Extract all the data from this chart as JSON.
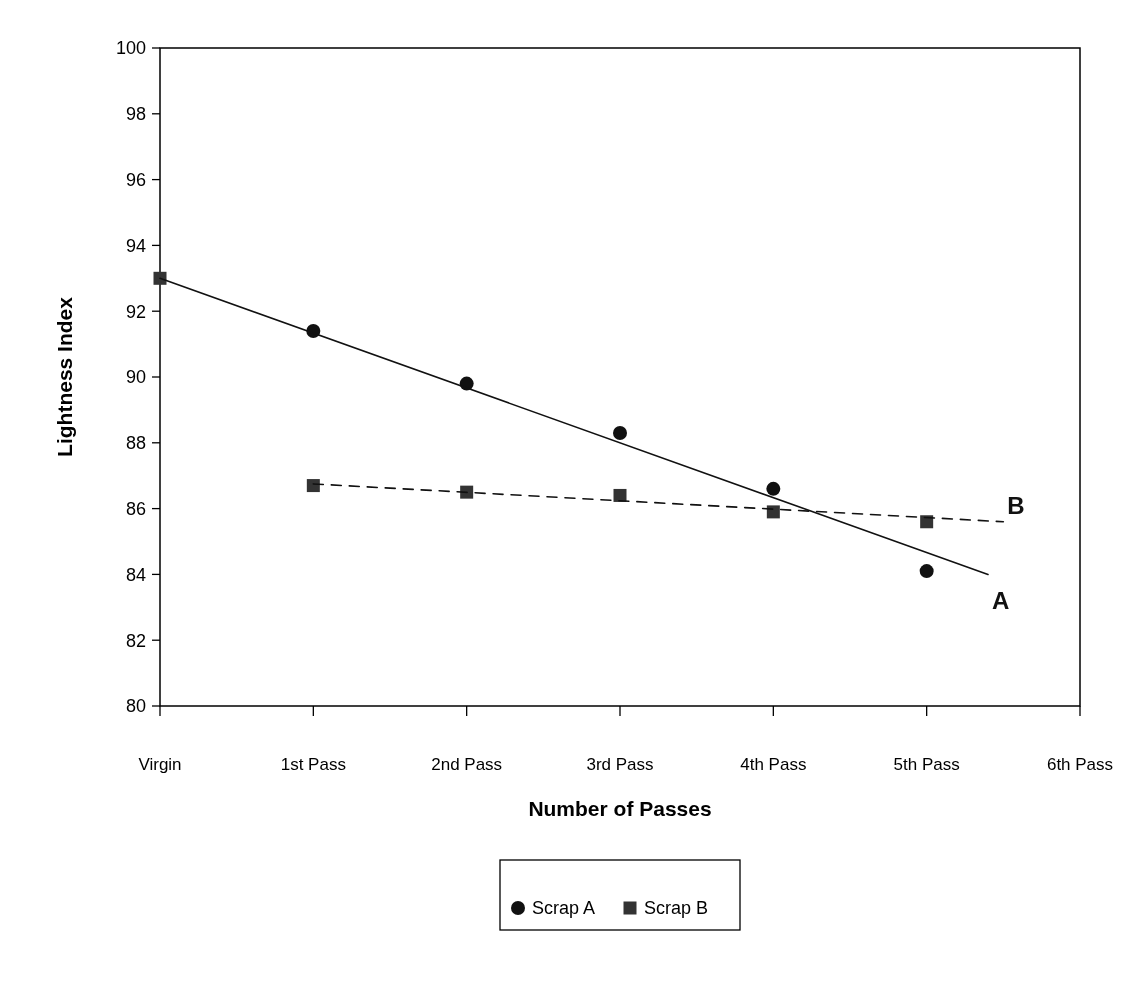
{
  "chart_data": {
    "type": "scatter",
    "xlabel": "Number of Passes",
    "ylabel": "Lightness Index",
    "x": [
      0,
      1,
      2,
      3,
      4,
      5
    ],
    "xlim": [
      0,
      6
    ],
    "xticks": [
      {
        "value": 0,
        "label": "Virgin"
      },
      {
        "value": 1,
        "label": "1st Pass"
      },
      {
        "value": 2,
        "label": "2nd Pass"
      },
      {
        "value": 3,
        "label": "3rd Pass"
      },
      {
        "value": 4,
        "label": "4th Pass"
      },
      {
        "value": 5,
        "label": "5th Pass"
      },
      {
        "value": 6,
        "label": "6th Pass"
      }
    ],
    "ylim": [
      80,
      100
    ],
    "yticks": [
      80,
      82,
      84,
      86,
      88,
      90,
      92,
      94,
      96,
      98,
      100
    ],
    "series": [
      {
        "name": "Scrap A",
        "color": "#111111",
        "marker": "circle",
        "values": [
          null,
          91.4,
          89.8,
          88.3,
          86.6,
          84.1
        ]
      },
      {
        "name": "Scrap B",
        "color": "#333333",
        "marker": "square",
        "values": [
          93.0,
          86.7,
          86.5,
          86.4,
          85.9,
          85.6
        ]
      },
      {
        "type": "line",
        "name": "A",
        "color": "#111111",
        "line_style": "solid",
        "x": [
          0,
          5.4
        ],
        "values": [
          93.0,
          84.0
        ]
      },
      {
        "type": "line",
        "name": "B",
        "color": "#111111",
        "line_style": "dashed",
        "x": [
          1,
          5.5
        ],
        "values": [
          86.75,
          85.6
        ]
      }
    ],
    "legend": "bottom",
    "grid": false
  }
}
